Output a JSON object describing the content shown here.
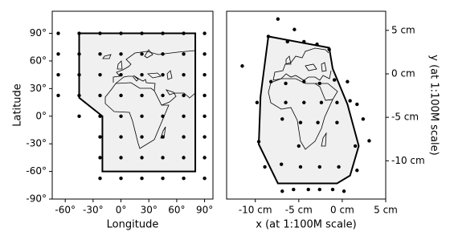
{
  "chart_data": [
    {
      "type": "scatter",
      "xlabel": "Longitude",
      "ylabel": "Latitude",
      "xlim": [
        -74,
        99
      ],
      "ylim": [
        -90,
        114
      ],
      "xticks": [
        {
          "value": -60,
          "label": "-60°"
        },
        {
          "value": -30,
          "label": "-30°"
        },
        {
          "value": 0,
          "label": "0°"
        },
        {
          "value": 30,
          "label": "30°"
        },
        {
          "value": 60,
          "label": "60°"
        },
        {
          "value": 90,
          "label": "90°"
        }
      ],
      "yticks": [
        {
          "value": -90,
          "label": "-90°"
        },
        {
          "value": -60,
          "label": "-60°"
        },
        {
          "value": -30,
          "label": "-30°"
        },
        {
          "value": 0,
          "label": "0°"
        },
        {
          "value": 30,
          "label": "30°"
        },
        {
          "value": 60,
          "label": "60°"
        },
        {
          "value": 90,
          "label": "90°"
        }
      ],
      "y_axis_side": "left",
      "color": "#000000",
      "region_fill": "#f0f0f0",
      "region": {
        "x": [
          -45,
          80,
          80,
          -20,
          -20,
          -45
        ],
        "y": [
          90,
          90,
          -60,
          -60,
          0,
          20
        ]
      },
      "x": [
        -67.5,
        -67.5,
        -67.5,
        -67.5,
        -45,
        -45,
        -45,
        -45,
        -45,
        -22.5,
        -22.5,
        -22.5,
        -22.5,
        -22.5,
        -22.5,
        -22.5,
        -22.5,
        0,
        0,
        0,
        0,
        0,
        0,
        0,
        0,
        22.5,
        22.5,
        22.5,
        22.5,
        22.5,
        22.5,
        22.5,
        22.5,
        45,
        45,
        45,
        45,
        45,
        45,
        45,
        45,
        67.5,
        67.5,
        67.5,
        67.5,
        67.5,
        67.5,
        67.5,
        67.5,
        90,
        90,
        90,
        90,
        90,
        90,
        90,
        90
      ],
      "y": [
        90,
        67.5,
        45,
        22.5,
        90,
        67.5,
        45,
        22.5,
        0,
        90,
        67.5,
        45,
        22.5,
        0,
        -22.5,
        -45,
        -67.5,
        90,
        67.5,
        45,
        22.5,
        0,
        -22.5,
        -45,
        -67.5,
        90,
        67.5,
        45,
        22.5,
        0,
        -22.5,
        -45,
        -67.5,
        90,
        67.5,
        45,
        22.5,
        0,
        -22.5,
        -45,
        -67.5,
        90,
        67.5,
        45,
        22.5,
        0,
        -22.5,
        -45,
        -67.5,
        90,
        67.5,
        45,
        22.5,
        0,
        -22.5,
        -45,
        -67.5
      ]
    },
    {
      "type": "scatter",
      "xlabel": "x (at 1:100M scale)",
      "ylabel": "y (at 1:100M scale)",
      "xlim": [
        -13.3,
        5
      ],
      "ylim": [
        -14.4,
        7.2
      ],
      "xticks": [
        {
          "value": -10,
          "label": "-10 cm"
        },
        {
          "value": -5,
          "label": "-5 cm"
        },
        {
          "value": 0,
          "label": "0 cm"
        },
        {
          "value": 5,
          "label": "5 cm"
        }
      ],
      "yticks": [
        {
          "value": -10,
          "label": "-10 cm"
        },
        {
          "value": -5,
          "label": "-5 cm"
        },
        {
          "value": 0,
          "label": "0 cm"
        },
        {
          "value": 5,
          "label": "5 cm"
        }
      ],
      "y_axis_side": "right",
      "color": "#000000",
      "region_fill": "#f0f0f0",
      "region": {
        "x": [
          -8.5,
          -1.5,
          -1.1,
          0.6,
          1.9,
          0.9,
          -0.6,
          -7.4,
          -9.6,
          -9.4
        ],
        "y": [
          4.3,
          3.0,
          0.6,
          -3.5,
          -8.3,
          -11.7,
          -12.6,
          -12.6,
          -8.1,
          -2.6
        ]
      },
      "x": [
        -7.4,
        -5.5,
        -11.5,
        -8.5,
        -6.3,
        -4.4,
        -2.9,
        -1.5,
        -9.8,
        -8.2,
        -6.5,
        -4.4,
        -2.6,
        -0.9,
        0.6,
        1.7,
        2.4,
        3.1,
        0.9,
        -0.6,
        -2.4,
        -4.4,
        -6.5,
        -4.8,
        -2.8,
        -0.6,
        1.5,
        -6.9,
        -8.9,
        -7.0,
        -5.0,
        -4.8,
        -2.6,
        -0.4,
        1.7,
        -6.9,
        -5.6,
        -3.9,
        -2.6,
        -1.1,
        0.2,
        -9.6
      ],
      "y": [
        6.3,
        5.1,
        0.9,
        4.3,
        3.7,
        3.7,
        3.4,
        2.8,
        -3.3,
        -0.9,
        -1.1,
        -0.9,
        -1.1,
        -0.7,
        -0.9,
        -3.5,
        -5.2,
        -7.7,
        -3.1,
        -3.3,
        -3.3,
        -3.3,
        -3.3,
        -5.6,
        -5.6,
        -5.6,
        -8.3,
        -5.2,
        -10.7,
        -10.4,
        -8.3,
        -10.7,
        -10.7,
        -10.7,
        -11.1,
        -13.5,
        -13.3,
        -13.3,
        -13.3,
        -13.3,
        -13.5,
        -7.8
      ]
    }
  ]
}
